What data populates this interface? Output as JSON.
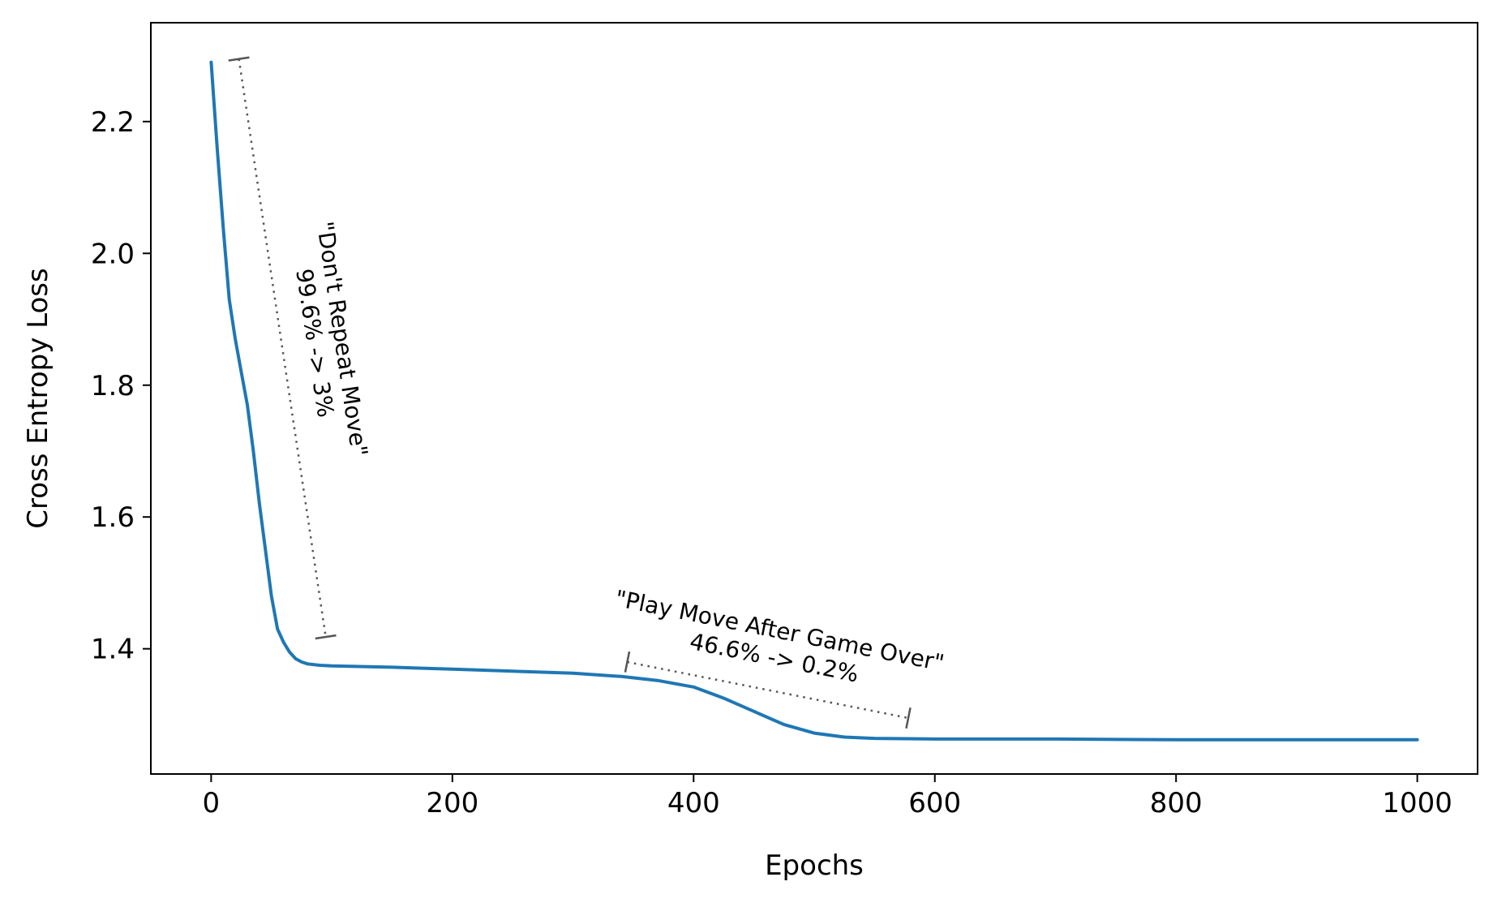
{
  "chart_data": {
    "type": "line",
    "title": "",
    "xlabel": "Epochs",
    "ylabel": "Cross Entropy Loss",
    "xlim": [
      -50,
      1050
    ],
    "ylim": [
      1.21,
      2.35
    ],
    "xticks": [
      0,
      200,
      400,
      600,
      800,
      1000
    ],
    "xtick_labels": [
      "0",
      "200",
      "400",
      "600",
      "800",
      "1000"
    ],
    "yticks": [
      1.4,
      1.6,
      1.8,
      2.0,
      2.2
    ],
    "ytick_labels": [
      "1.4",
      "1.6",
      "1.8",
      "2.0",
      "2.2"
    ],
    "grid": false,
    "legend": "none",
    "series": [
      {
        "color": "#1f77b4",
        "x": [
          0,
          5,
          10,
          15,
          20,
          25,
          30,
          35,
          40,
          45,
          50,
          55,
          60,
          65,
          70,
          75,
          80,
          90,
          100,
          150,
          200,
          250,
          300,
          340,
          370,
          400,
          425,
          450,
          475,
          500,
          525,
          550,
          600,
          700,
          800,
          900,
          1000
        ],
        "y": [
          2.29,
          2.16,
          2.04,
          1.93,
          1.87,
          1.82,
          1.77,
          1.7,
          1.62,
          1.55,
          1.48,
          1.43,
          1.41,
          1.395,
          1.385,
          1.38,
          1.377,
          1.375,
          1.374,
          1.372,
          1.369,
          1.366,
          1.363,
          1.358,
          1.352,
          1.342,
          1.325,
          1.305,
          1.285,
          1.272,
          1.266,
          1.264,
          1.263,
          1.263,
          1.262,
          1.262,
          1.262
        ]
      }
    ],
    "annotations": [
      {
        "name": "dont-repeat-move",
        "lines": [
          "\"Don't Repeat Move\"",
          "99.6% -> 3%"
        ],
        "start": [
          23,
          2.295
        ],
        "end": [
          95,
          1.418
        ]
      },
      {
        "name": "play-move-after-game-over",
        "lines": [
          "\"Play Move After Game Over\"",
          "46.6% -> 0.2%"
        ],
        "start": [
          345,
          1.38
        ],
        "end": [
          578,
          1.295
        ]
      }
    ]
  }
}
